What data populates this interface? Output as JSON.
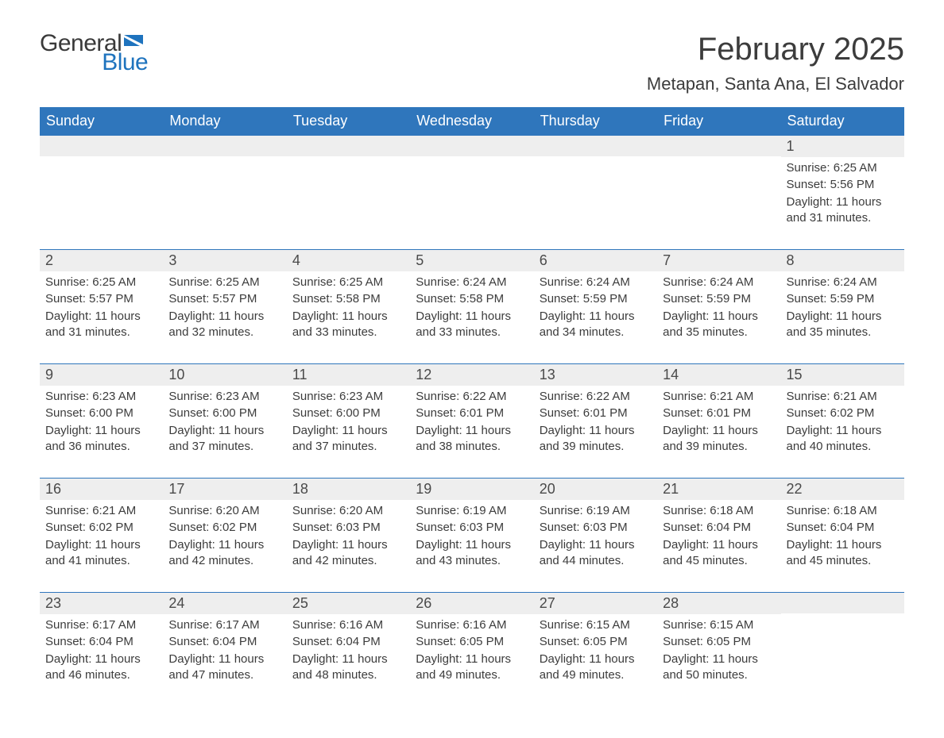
{
  "logo": {
    "text_general": "General",
    "text_blue": "Blue",
    "flag_color": "#1e73be"
  },
  "title": "February 2025",
  "location": "Metapan, Santa Ana, El Salvador",
  "colors": {
    "header_bg": "#2f76bc",
    "header_text": "#ffffff",
    "daynum_bg": "#eeeeee",
    "border": "#2f76bc",
    "body_text": "#3c3c3c",
    "page_bg": "#ffffff"
  },
  "typography": {
    "title_fontsize": 40,
    "location_fontsize": 22,
    "weekday_fontsize": 18,
    "daynum_fontsize": 18,
    "body_fontsize": 15
  },
  "layout": {
    "columns": 7,
    "rows": 5
  },
  "weekdays": [
    "Sunday",
    "Monday",
    "Tuesday",
    "Wednesday",
    "Thursday",
    "Friday",
    "Saturday"
  ],
  "weeks": [
    [
      {
        "day": "",
        "sunrise": "",
        "sunset": "",
        "daylight": ""
      },
      {
        "day": "",
        "sunrise": "",
        "sunset": "",
        "daylight": ""
      },
      {
        "day": "",
        "sunrise": "",
        "sunset": "",
        "daylight": ""
      },
      {
        "day": "",
        "sunrise": "",
        "sunset": "",
        "daylight": ""
      },
      {
        "day": "",
        "sunrise": "",
        "sunset": "",
        "daylight": ""
      },
      {
        "day": "",
        "sunrise": "",
        "sunset": "",
        "daylight": ""
      },
      {
        "day": "1",
        "sunrise": "Sunrise: 6:25 AM",
        "sunset": "Sunset: 5:56 PM",
        "daylight": "Daylight: 11 hours and 31 minutes."
      }
    ],
    [
      {
        "day": "2",
        "sunrise": "Sunrise: 6:25 AM",
        "sunset": "Sunset: 5:57 PM",
        "daylight": "Daylight: 11 hours and 31 minutes."
      },
      {
        "day": "3",
        "sunrise": "Sunrise: 6:25 AM",
        "sunset": "Sunset: 5:57 PM",
        "daylight": "Daylight: 11 hours and 32 minutes."
      },
      {
        "day": "4",
        "sunrise": "Sunrise: 6:25 AM",
        "sunset": "Sunset: 5:58 PM",
        "daylight": "Daylight: 11 hours and 33 minutes."
      },
      {
        "day": "5",
        "sunrise": "Sunrise: 6:24 AM",
        "sunset": "Sunset: 5:58 PM",
        "daylight": "Daylight: 11 hours and 33 minutes."
      },
      {
        "day": "6",
        "sunrise": "Sunrise: 6:24 AM",
        "sunset": "Sunset: 5:59 PM",
        "daylight": "Daylight: 11 hours and 34 minutes."
      },
      {
        "day": "7",
        "sunrise": "Sunrise: 6:24 AM",
        "sunset": "Sunset: 5:59 PM",
        "daylight": "Daylight: 11 hours and 35 minutes."
      },
      {
        "day": "8",
        "sunrise": "Sunrise: 6:24 AM",
        "sunset": "Sunset: 5:59 PM",
        "daylight": "Daylight: 11 hours and 35 minutes."
      }
    ],
    [
      {
        "day": "9",
        "sunrise": "Sunrise: 6:23 AM",
        "sunset": "Sunset: 6:00 PM",
        "daylight": "Daylight: 11 hours and 36 minutes."
      },
      {
        "day": "10",
        "sunrise": "Sunrise: 6:23 AM",
        "sunset": "Sunset: 6:00 PM",
        "daylight": "Daylight: 11 hours and 37 minutes."
      },
      {
        "day": "11",
        "sunrise": "Sunrise: 6:23 AM",
        "sunset": "Sunset: 6:00 PM",
        "daylight": "Daylight: 11 hours and 37 minutes."
      },
      {
        "day": "12",
        "sunrise": "Sunrise: 6:22 AM",
        "sunset": "Sunset: 6:01 PM",
        "daylight": "Daylight: 11 hours and 38 minutes."
      },
      {
        "day": "13",
        "sunrise": "Sunrise: 6:22 AM",
        "sunset": "Sunset: 6:01 PM",
        "daylight": "Daylight: 11 hours and 39 minutes."
      },
      {
        "day": "14",
        "sunrise": "Sunrise: 6:21 AM",
        "sunset": "Sunset: 6:01 PM",
        "daylight": "Daylight: 11 hours and 39 minutes."
      },
      {
        "day": "15",
        "sunrise": "Sunrise: 6:21 AM",
        "sunset": "Sunset: 6:02 PM",
        "daylight": "Daylight: 11 hours and 40 minutes."
      }
    ],
    [
      {
        "day": "16",
        "sunrise": "Sunrise: 6:21 AM",
        "sunset": "Sunset: 6:02 PM",
        "daylight": "Daylight: 11 hours and 41 minutes."
      },
      {
        "day": "17",
        "sunrise": "Sunrise: 6:20 AM",
        "sunset": "Sunset: 6:02 PM",
        "daylight": "Daylight: 11 hours and 42 minutes."
      },
      {
        "day": "18",
        "sunrise": "Sunrise: 6:20 AM",
        "sunset": "Sunset: 6:03 PM",
        "daylight": "Daylight: 11 hours and 42 minutes."
      },
      {
        "day": "19",
        "sunrise": "Sunrise: 6:19 AM",
        "sunset": "Sunset: 6:03 PM",
        "daylight": "Daylight: 11 hours and 43 minutes."
      },
      {
        "day": "20",
        "sunrise": "Sunrise: 6:19 AM",
        "sunset": "Sunset: 6:03 PM",
        "daylight": "Daylight: 11 hours and 44 minutes."
      },
      {
        "day": "21",
        "sunrise": "Sunrise: 6:18 AM",
        "sunset": "Sunset: 6:04 PM",
        "daylight": "Daylight: 11 hours and 45 minutes."
      },
      {
        "day": "22",
        "sunrise": "Sunrise: 6:18 AM",
        "sunset": "Sunset: 6:04 PM",
        "daylight": "Daylight: 11 hours and 45 minutes."
      }
    ],
    [
      {
        "day": "23",
        "sunrise": "Sunrise: 6:17 AM",
        "sunset": "Sunset: 6:04 PM",
        "daylight": "Daylight: 11 hours and 46 minutes."
      },
      {
        "day": "24",
        "sunrise": "Sunrise: 6:17 AM",
        "sunset": "Sunset: 6:04 PM",
        "daylight": "Daylight: 11 hours and 47 minutes."
      },
      {
        "day": "25",
        "sunrise": "Sunrise: 6:16 AM",
        "sunset": "Sunset: 6:04 PM",
        "daylight": "Daylight: 11 hours and 48 minutes."
      },
      {
        "day": "26",
        "sunrise": "Sunrise: 6:16 AM",
        "sunset": "Sunset: 6:05 PM",
        "daylight": "Daylight: 11 hours and 49 minutes."
      },
      {
        "day": "27",
        "sunrise": "Sunrise: 6:15 AM",
        "sunset": "Sunset: 6:05 PM",
        "daylight": "Daylight: 11 hours and 49 minutes."
      },
      {
        "day": "28",
        "sunrise": "Sunrise: 6:15 AM",
        "sunset": "Sunset: 6:05 PM",
        "daylight": "Daylight: 11 hours and 50 minutes."
      },
      {
        "day": "",
        "sunrise": "",
        "sunset": "",
        "daylight": ""
      }
    ]
  ]
}
